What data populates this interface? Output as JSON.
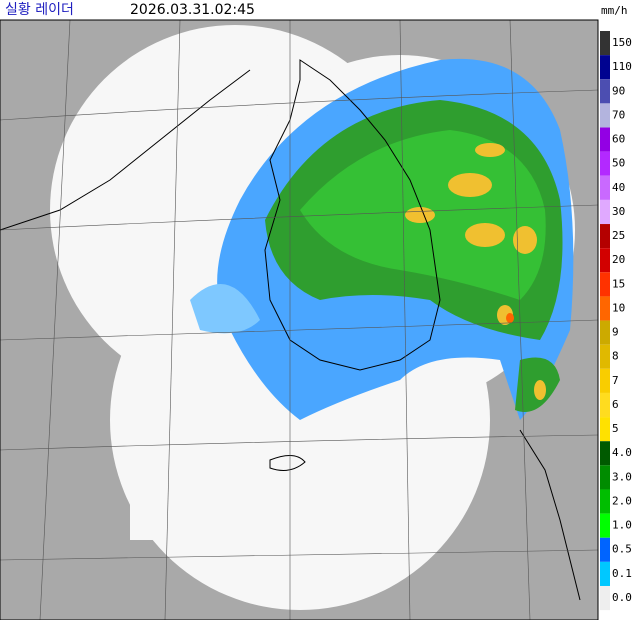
{
  "header": {
    "title": "실황 레이더",
    "timestamp": "2026.03.31.02:45",
    "unit": "mm/h"
  },
  "legend": {
    "items": [
      {
        "label": "150",
        "color": "#333333"
      },
      {
        "label": "110",
        "color": "#000390"
      },
      {
        "label": "90",
        "color": "#4c4eb1"
      },
      {
        "label": "70",
        "color": "#b3b4de"
      },
      {
        "label": "60",
        "color": "#9300e4"
      },
      {
        "label": "50",
        "color": "#b329ff"
      },
      {
        "label": "40",
        "color": "#c969ff"
      },
      {
        "label": "30",
        "color": "#e0a9ff"
      },
      {
        "label": "25",
        "color": "#b40000"
      },
      {
        "label": "20",
        "color": "#d20000"
      },
      {
        "label": "15",
        "color": "#ff3200"
      },
      {
        "label": "10",
        "color": "#ff6600"
      },
      {
        "label": "9",
        "color": "#ccaa00"
      },
      {
        "label": "8",
        "color": "#e0b900"
      },
      {
        "label": "7",
        "color": "#f9cd00"
      },
      {
        "label": "6",
        "color": "#ffdc1f"
      },
      {
        "label": "5",
        "color": "#ffe100"
      },
      {
        "label": "4.0",
        "color": "#005a00"
      },
      {
        "label": "3.0",
        "color": "#008c00"
      },
      {
        "label": "2.0",
        "color": "#00be00"
      },
      {
        "label": "1.0",
        "color": "#00ff00"
      },
      {
        "label": "0.5",
        "color": "#0064ff"
      },
      {
        "label": "0.1",
        "color": "#00c8ff"
      },
      {
        "label": "0.0",
        "color": "#eeeeee"
      }
    ]
  }
}
